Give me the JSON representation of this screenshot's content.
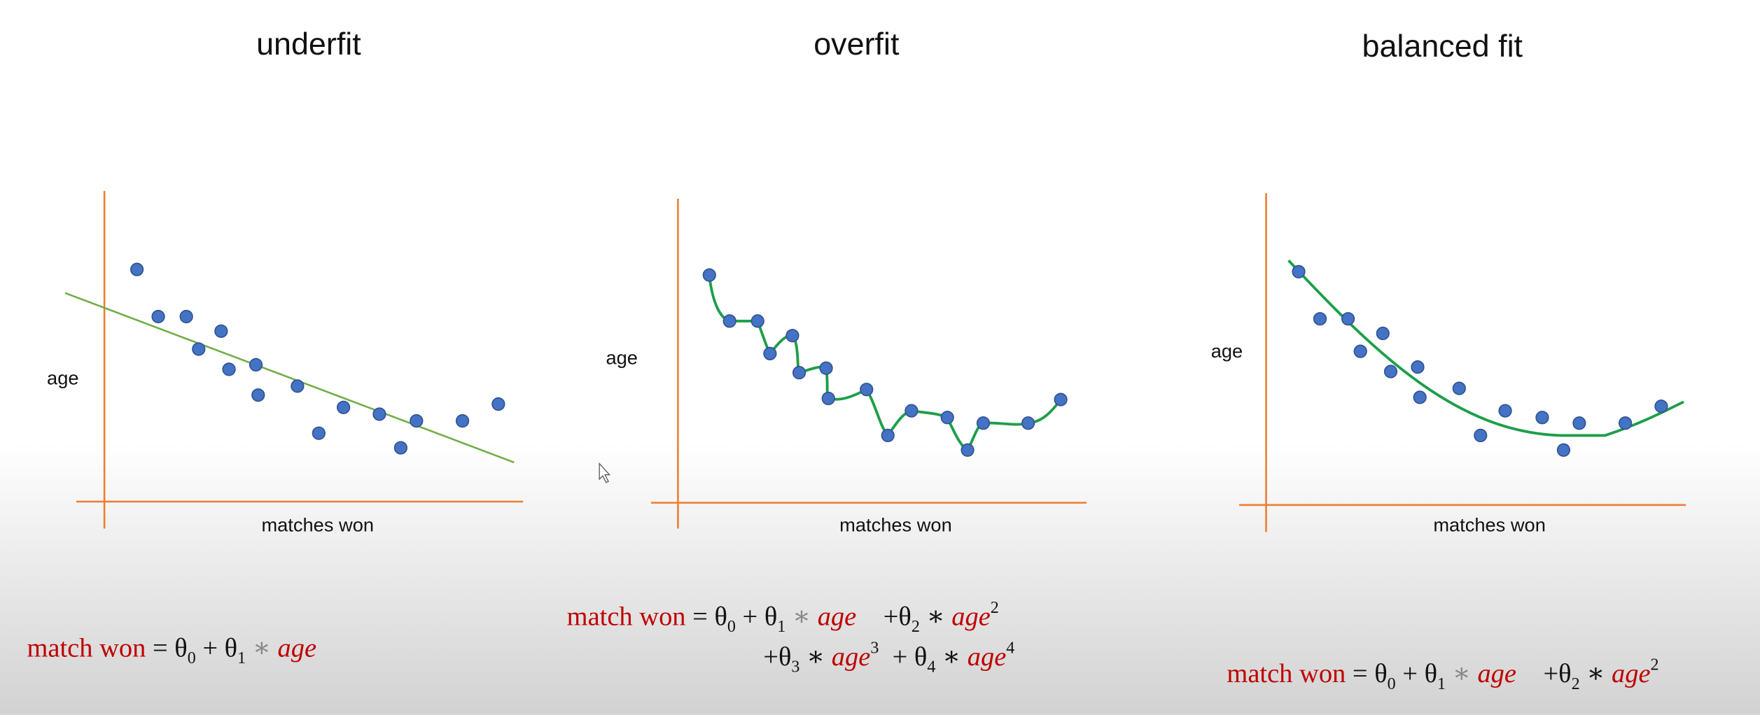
{
  "panels": [
    {
      "title": "underfit",
      "y_label": "age",
      "x_label": "matches won",
      "equation": [
        [
          {
            "text": "match won",
            "style": "name"
          },
          {
            "text": " = θ",
            "style": "op"
          },
          {
            "text": "0",
            "style": "sub"
          },
          {
            "text": " + θ",
            "style": "op"
          },
          {
            "text": "1",
            "style": "sub"
          },
          {
            "text": " ∗ ",
            "style": "star"
          },
          {
            "text": "age",
            "style": "var"
          }
        ]
      ]
    },
    {
      "title": "overfit",
      "y_label": "age",
      "x_label": "matches won",
      "equation": [
        [
          {
            "text": "match won",
            "style": "name"
          },
          {
            "text": " = θ",
            "style": "op"
          },
          {
            "text": "0",
            "style": "sub"
          },
          {
            "text": " + θ",
            "style": "op"
          },
          {
            "text": "1",
            "style": "sub"
          },
          {
            "text": " ∗ ",
            "style": "star"
          },
          {
            "text": "age",
            "style": "var"
          },
          {
            "text": "    +θ",
            "style": "op"
          },
          {
            "text": "2",
            "style": "sub"
          },
          {
            "text": " ∗ ",
            "style": "op"
          },
          {
            "text": "age",
            "style": "var"
          },
          {
            "text": "2",
            "style": "sup"
          }
        ],
        [
          {
            "text": "+θ",
            "style": "op"
          },
          {
            "text": "3",
            "style": "sub"
          },
          {
            "text": " ∗ ",
            "style": "op"
          },
          {
            "text": "age",
            "style": "var"
          },
          {
            "text": "3",
            "style": "sup"
          },
          {
            "text": "  + θ",
            "style": "op"
          },
          {
            "text": "4",
            "style": "sub"
          },
          {
            "text": " ∗ ",
            "style": "op"
          },
          {
            "text": "age",
            "style": "var"
          },
          {
            "text": "4",
            "style": "sup"
          }
        ]
      ]
    },
    {
      "title": "balanced fit",
      "y_label": "age",
      "x_label": "matches won",
      "equation": [
        [
          {
            "text": "match won",
            "style": "name"
          },
          {
            "text": " = θ",
            "style": "op"
          },
          {
            "text": "0",
            "style": "sub"
          },
          {
            "text": " + θ",
            "style": "op"
          },
          {
            "text": "1",
            "style": "sub"
          },
          {
            "text": " ∗ ",
            "style": "star"
          },
          {
            "text": "age",
            "style": "var"
          },
          {
            "text": "    +θ",
            "style": "op"
          },
          {
            "text": "2",
            "style": "sub"
          },
          {
            "text": " ∗ ",
            "style": "op"
          },
          {
            "text": "age",
            "style": "var"
          },
          {
            "text": "2",
            "style": "sup"
          }
        ]
      ]
    }
  ]
}
